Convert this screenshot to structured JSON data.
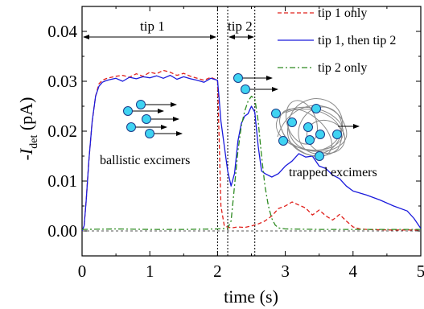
{
  "chart_data": {
    "type": "line",
    "xlabel": "time (s)",
    "ylabel_main": "-I",
    "ylabel_sub": "det",
    "ylabel_unit": " (pA)",
    "xlim": [
      0,
      5
    ],
    "ylim": [
      -0.005,
      0.045
    ],
    "x_ticks": [
      0,
      1,
      2,
      3,
      4,
      5
    ],
    "x_tick_labels": [
      "0",
      "1",
      "2",
      "3",
      "4",
      "5"
    ],
    "y_ticks": [
      0,
      0.01,
      0.02,
      0.03,
      0.04
    ],
    "y_tick_labels": [
      "0.00",
      "0.01",
      "0.02",
      "0.03",
      "0.04"
    ],
    "grid": false,
    "legend_position": "top-right",
    "series": [
      {
        "name": "tip 1 only",
        "color": "#e0201b",
        "dash": "dashed",
        "x": [
          0,
          0.03,
          0.06,
          0.1,
          0.15,
          0.2,
          0.25,
          0.3,
          0.35,
          0.4,
          0.5,
          0.6,
          0.7,
          0.8,
          0.9,
          1.0,
          1.1,
          1.2,
          1.3,
          1.4,
          1.5,
          1.6,
          1.7,
          1.8,
          1.9,
          2.0,
          2.02,
          2.05,
          2.1,
          2.2,
          2.3,
          2.4,
          2.5,
          2.6,
          2.7,
          2.8,
          2.9,
          3.0,
          3.1,
          3.2,
          3.3,
          3.4,
          3.5,
          3.6,
          3.7,
          3.8,
          3.9,
          4.0,
          4.1,
          4.2,
          4.5,
          5.0
        ],
        "y": [
          0,
          0.001,
          0.006,
          0.014,
          0.022,
          0.027,
          0.0295,
          0.0302,
          0.0305,
          0.0307,
          0.031,
          0.0312,
          0.0308,
          0.0315,
          0.031,
          0.0318,
          0.0315,
          0.0322,
          0.0318,
          0.0312,
          0.0316,
          0.031,
          0.0306,
          0.0302,
          0.0308,
          0.0302,
          0.02,
          0.005,
          0.001,
          0.0006,
          0.0008,
          0.0007,
          0.001,
          0.0014,
          0.002,
          0.003,
          0.0045,
          0.005,
          0.0058,
          0.0052,
          0.0046,
          0.0032,
          0.0042,
          0.003,
          0.0022,
          0.0033,
          0.002,
          0.0008,
          0.0004,
          0.0003,
          0.0002,
          0.0002
        ]
      },
      {
        "name": "tip 1, then tip 2",
        "color": "#1a1adc",
        "dash": "solid",
        "x": [
          0,
          0.03,
          0.06,
          0.1,
          0.15,
          0.2,
          0.25,
          0.3,
          0.35,
          0.4,
          0.5,
          0.6,
          0.7,
          0.8,
          0.9,
          1.0,
          1.1,
          1.2,
          1.3,
          1.4,
          1.5,
          1.6,
          1.7,
          1.8,
          1.9,
          2.0,
          2.02,
          2.05,
          2.1,
          2.15,
          2.2,
          2.25,
          2.3,
          2.35,
          2.4,
          2.45,
          2.5,
          2.55,
          2.6,
          2.65,
          2.7,
          2.8,
          2.9,
          3.0,
          3.1,
          3.2,
          3.3,
          3.4,
          3.5,
          3.6,
          3.7,
          3.8,
          3.9,
          4.0,
          4.2,
          4.4,
          4.6,
          4.8,
          4.9,
          5.0
        ],
        "y": [
          0,
          0.001,
          0.006,
          0.014,
          0.022,
          0.027,
          0.029,
          0.0298,
          0.0301,
          0.0303,
          0.0306,
          0.03,
          0.0308,
          0.0305,
          0.0309,
          0.0307,
          0.0311,
          0.0306,
          0.0312,
          0.0304,
          0.0309,
          0.0305,
          0.0302,
          0.0298,
          0.0306,
          0.0302,
          0.027,
          0.022,
          0.017,
          0.012,
          0.009,
          0.0115,
          0.018,
          0.0215,
          0.023,
          0.0235,
          0.025,
          0.0238,
          0.017,
          0.012,
          0.0115,
          0.0108,
          0.0115,
          0.013,
          0.014,
          0.0155,
          0.0148,
          0.015,
          0.013,
          0.0125,
          0.0112,
          0.0105,
          0.009,
          0.008,
          0.0072,
          0.0062,
          0.005,
          0.004,
          0.0025,
          0.0005
        ]
      },
      {
        "name": "tip 2 only",
        "color": "#2e8b22",
        "dash": "dashdot",
        "x": [
          0,
          0.5,
          1.0,
          1.5,
          2.0,
          2.15,
          2.2,
          2.25,
          2.3,
          2.35,
          2.4,
          2.45,
          2.5,
          2.55,
          2.6,
          2.65,
          2.7,
          2.75,
          2.8,
          2.85,
          2.9,
          3.0,
          3.5,
          4.0,
          4.5,
          5.0
        ],
        "y": [
          0.0003,
          0.0004,
          0.0003,
          0.0003,
          0.0004,
          0.0005,
          0.002,
          0.009,
          0.016,
          0.021,
          0.024,
          0.026,
          0.027,
          0.0265,
          0.022,
          0.015,
          0.009,
          0.005,
          0.0025,
          0.0012,
          0.0006,
          0.0004,
          0.0003,
          0.0003,
          0.0003,
          0.0003
        ]
      }
    ],
    "vlines": [
      2.0,
      2.15,
      2.55
    ],
    "annotations": {
      "tip1": "tip 1",
      "tip2": "tip 2",
      "ballistic": "ballistic excimers",
      "trapped": "trapped excimers"
    },
    "colors": {
      "particle_fill": "#3fd3f2",
      "particle_stroke": "#1a3a88",
      "arrow": "#000000",
      "trap_lines": "#8a8a8a"
    }
  }
}
